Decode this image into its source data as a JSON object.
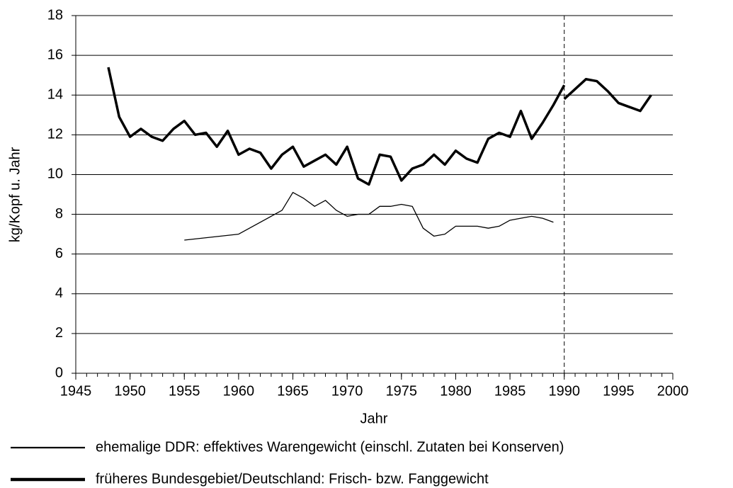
{
  "chart_data": {
    "type": "line",
    "xlabel": "Jahr",
    "ylabel": "kg/Kopf u. Jahr",
    "xlim": [
      1945,
      2000
    ],
    "xticks": [
      1945,
      1950,
      1955,
      1960,
      1965,
      1970,
      1975,
      1980,
      1985,
      1990,
      1995,
      2000
    ],
    "minor_tick_step": 1,
    "ylim": [
      0,
      18
    ],
    "yticks": [
      0,
      2,
      4,
      6,
      8,
      10,
      12,
      14,
      16,
      18
    ],
    "grid": true,
    "vline": 1990,
    "legend": "bottom",
    "series": [
      {
        "name": "ehemalige DDR:  effektives Warengewicht (einschl. Zutaten bei Konserven)",
        "color": "#000000",
        "line_width": 1.3,
        "x": [
          1955,
          1960,
          1964,
          1965,
          1966,
          1967,
          1968,
          1969,
          1970,
          1971,
          1972,
          1973,
          1974,
          1975,
          1976,
          1977,
          1978,
          1979,
          1980,
          1981,
          1982,
          1983,
          1984,
          1985,
          1986,
          1987,
          1988,
          1989
        ],
        "values": [
          6.7,
          7.0,
          8.2,
          9.1,
          8.8,
          8.4,
          8.7,
          8.2,
          7.9,
          8.0,
          8.0,
          8.4,
          8.4,
          8.5,
          8.4,
          7.3,
          6.9,
          7.0,
          7.4,
          7.4,
          7.4,
          7.3,
          7.4,
          7.7,
          7.8,
          7.9,
          7.8,
          7.6
        ]
      },
      {
        "name": "früheres Bundesgebiet/Deutschland:  Frisch- bzw. Fanggewicht",
        "color": "#000000",
        "line_width": 3.5,
        "x": [
          1948,
          1949,
          1950,
          1951,
          1952,
          1953,
          1954,
          1955,
          1956,
          1957,
          1958,
          1959,
          1960,
          1961,
          1962,
          1963,
          1964,
          1965,
          1966,
          1967,
          1968,
          1969,
          1970,
          1971,
          1972,
          1973,
          1974,
          1975,
          1976,
          1977,
          1978,
          1979,
          1980,
          1981,
          1982,
          1983,
          1984,
          1985,
          1986,
          1987,
          1988,
          1989,
          1990,
          1990,
          1990,
          1991,
          1992,
          1993,
          1994,
          1995,
          1996,
          1997,
          1998
        ],
        "values": [
          15.4,
          12.9,
          11.9,
          12.3,
          11.9,
          11.7,
          12.3,
          12.7,
          12.0,
          12.1,
          11.4,
          12.2,
          11.0,
          11.3,
          11.1,
          10.3,
          11.0,
          11.4,
          10.4,
          10.7,
          11.0,
          10.5,
          11.4,
          9.8,
          9.5,
          11.0,
          10.9,
          9.7,
          10.3,
          10.5,
          11.0,
          10.5,
          11.2,
          10.8,
          10.6,
          11.8,
          12.1,
          11.9,
          13.2,
          11.8,
          12.6,
          13.5,
          14.5,
          null,
          13.8,
          14.3,
          14.8,
          14.7,
          14.2,
          13.6,
          13.4,
          13.2,
          14.0
        ]
      }
    ]
  }
}
